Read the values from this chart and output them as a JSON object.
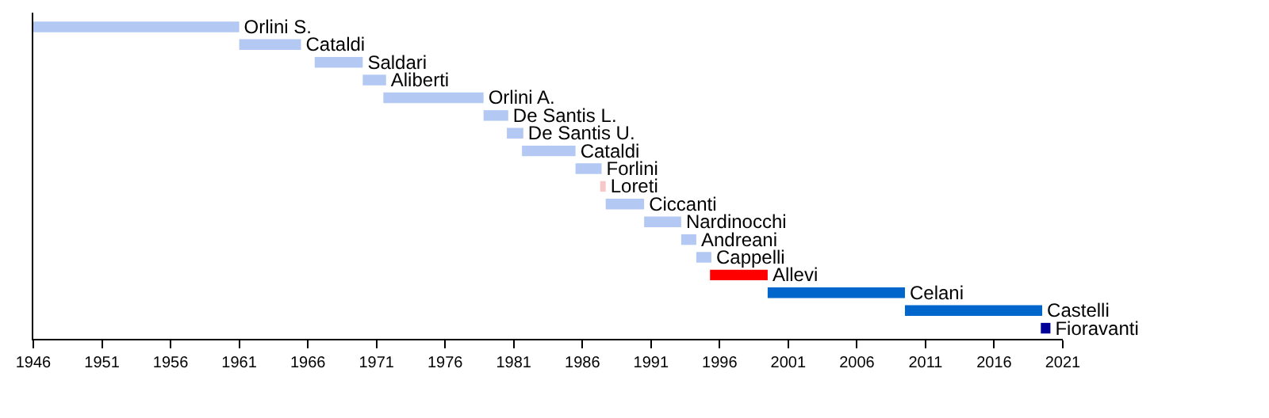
{
  "chart_data": {
    "type": "bar",
    "orientation": "horizontal",
    "categories": [
      "Orlini S.",
      "Cataldi",
      "Saldari",
      "Aliberti",
      "Orlini A.",
      "De Santis L.",
      "De Santis U.",
      "Cataldi",
      "Forlini",
      "Loreti",
      "Ciccanti",
      "Nardinocchi",
      "Andreani",
      "Cappelli",
      "Allevi",
      "Celani",
      "Castelli",
      "Fioravanti"
    ],
    "base": [
      1946,
      1961,
      1966.5,
      1970,
      1971.5,
      1978.8,
      1980.5,
      1981.6,
      1985.5,
      1987.3,
      1987.7,
      1990.5,
      1993.2,
      1994.3,
      1995.3,
      1999.5,
      2009.5,
      2019.4
    ],
    "values": [
      15,
      4.5,
      3.5,
      1.7,
      7.3,
      1.8,
      1.2,
      3.9,
      1.9,
      0.4,
      2.8,
      2.7,
      1.1,
      1.1,
      4.2,
      10,
      10,
      0.7
    ],
    "colors": [
      "#b3c9f3",
      "#b3c9f3",
      "#b3c9f3",
      "#b3c9f3",
      "#b3c9f3",
      "#b3c9f3",
      "#b3c9f3",
      "#b3c9f3",
      "#b3c9f3",
      "#f8c8c8",
      "#b3c9f3",
      "#b3c9f3",
      "#b3c9f3",
      "#b3c9f3",
      "#ff0000",
      "#0066cc",
      "#0066cc",
      "#000099"
    ],
    "xlim": [
      1946,
      2021
    ],
    "xticks": [
      1946,
      1951,
      1956,
      1961,
      1966,
      1971,
      1976,
      1981,
      1986,
      1991,
      1996,
      2001,
      2006,
      2011,
      2016,
      2021
    ],
    "tick_labels": "x",
    "grid": false
  }
}
